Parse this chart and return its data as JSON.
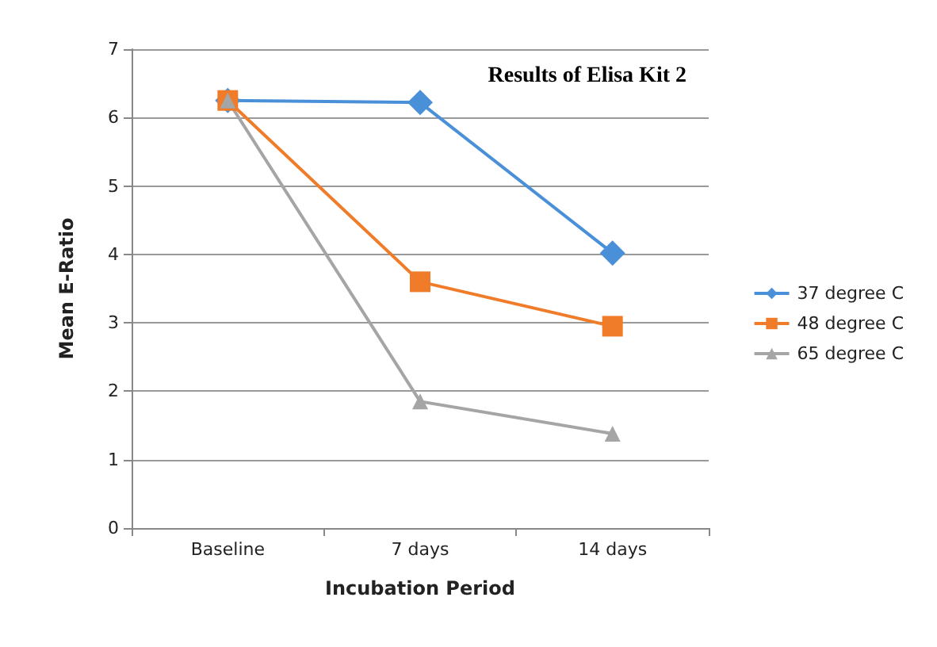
{
  "chart_data": {
    "type": "line",
    "title": "Results of Elisa Kit 2",
    "xlabel": "Incubation Period",
    "ylabel": "Mean E-Ratio",
    "categories": [
      "Baseline",
      "7 days",
      "14 days"
    ],
    "series": [
      {
        "name": "37 degree C",
        "color": "#4a90d9",
        "values": [
          6.25,
          6.22,
          4.02
        ],
        "marker": "diamond"
      },
      {
        "name": "48 degree C",
        "color": "#f07c2a",
        "values": [
          6.25,
          3.6,
          2.95
        ],
        "marker": "square"
      },
      {
        "name": "65 degree C",
        "color": "#a5a5a5",
        "values": [
          6.25,
          1.85,
          1.38
        ],
        "marker": "triangle"
      }
    ],
    "ylim": [
      0,
      7
    ],
    "yticks": [
      0,
      1,
      2,
      3,
      4,
      5,
      6,
      7
    ],
    "grid": "y",
    "legend": "right",
    "line_style": "solid"
  }
}
